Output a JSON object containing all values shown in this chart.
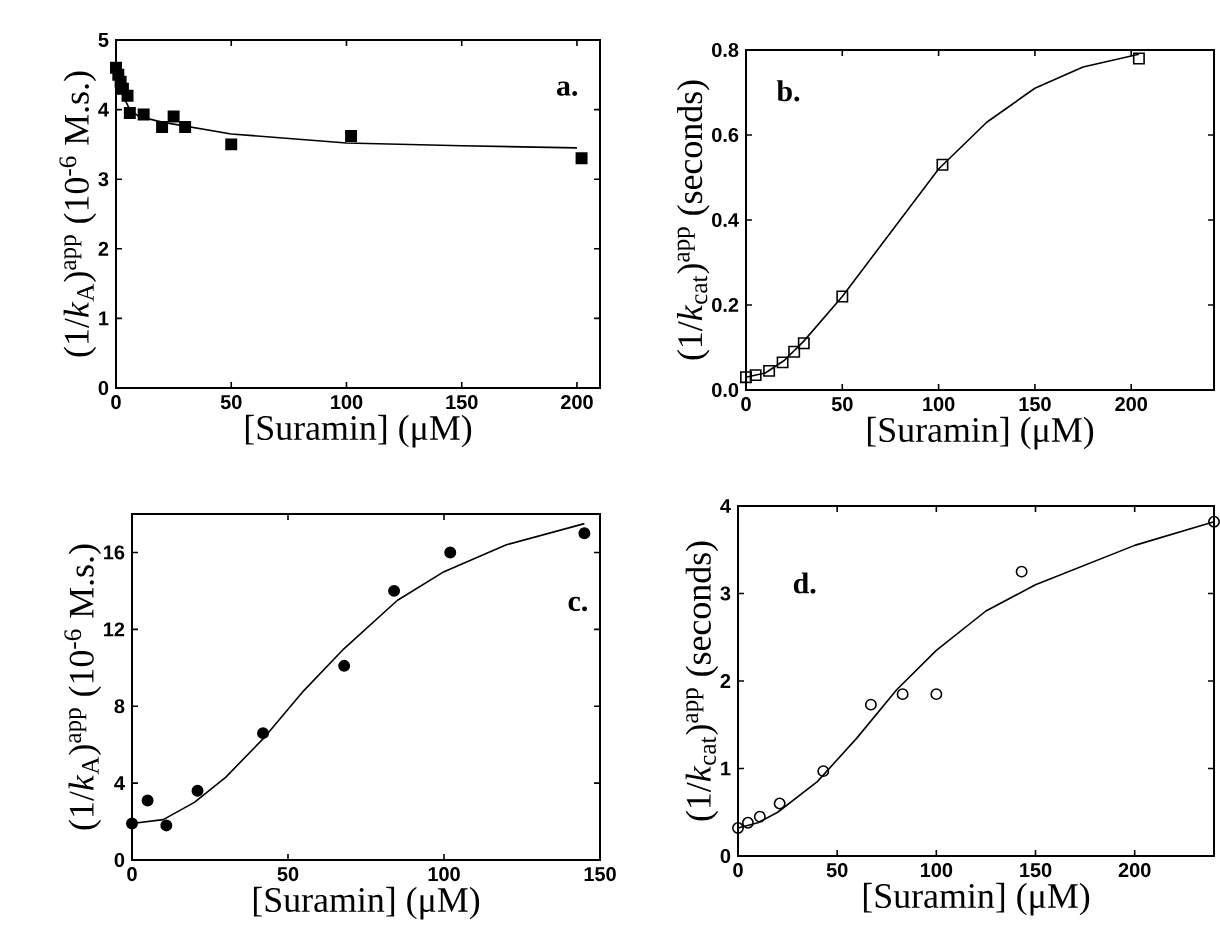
{
  "chart_data": [
    {
      "type": "scatter",
      "xlabel": "[Suramin] (μM)",
      "ylabel": "(1/*k*$_{A}$)$^{app}$ (10$^{-6}$ M.s.)",
      "annotations": [
        "a."
      ],
      "xlim": [
        0,
        210
      ],
      "ylim": [
        0,
        5
      ],
      "xticks": [
        0,
        50,
        100,
        150,
        200
      ],
      "yticks": [
        0,
        1,
        2,
        3,
        4,
        5
      ],
      "series": [
        {
          "marker": "square",
          "color": "#000000",
          "x": [
            0,
            1,
            2,
            3,
            5,
            6,
            12,
            20,
            25,
            30,
            50,
            102,
            202
          ],
          "values": [
            4.6,
            4.5,
            4.4,
            4.3,
            4.2,
            3.95,
            3.93,
            3.75,
            3.9,
            3.75,
            3.5,
            3.62,
            3.3
          ]
        },
        {
          "type": "line",
          "marker": "none",
          "color": "#000000",
          "x": [
            0,
            3,
            6,
            10,
            20,
            50,
            100,
            150,
            200
          ],
          "values": [
            4.6,
            4.2,
            4.0,
            3.9,
            3.82,
            3.65,
            3.52,
            3.48,
            3.45
          ]
        }
      ]
    },
    {
      "type": "scatter",
      "xlabel": "[Suramin] (μM)",
      "ylabel": "(1/*k*$_{cat}$)$^{app}$ (seconds)",
      "annotations": [
        "b."
      ],
      "xlim": [
        0,
        243
      ],
      "ylim": [
        0,
        0.8
      ],
      "xticks": [
        0,
        50,
        100,
        150,
        200
      ],
      "yticks": [
        {
          "value": 0,
          "label": "0.0"
        },
        0.2,
        0.4,
        0.6,
        0.8
      ],
      "series": [
        {
          "marker": "square",
          "color": "#000000",
          "x": [
            0,
            5,
            12,
            19,
            25,
            30,
            50,
            102,
            204
          ],
          "values": [
            0.03,
            0.035,
            0.045,
            0.065,
            0.09,
            0.11,
            0.22,
            0.53,
            0.78
          ]
        },
        {
          "type": "line",
          "marker": "none",
          "color": "#000000",
          "x": [
            0,
            10,
            20,
            30,
            50,
            75,
            100,
            125,
            150,
            175,
            204
          ],
          "values": [
            0.03,
            0.04,
            0.07,
            0.115,
            0.22,
            0.37,
            0.52,
            0.63,
            0.71,
            0.76,
            0.79
          ]
        }
      ]
    },
    {
      "type": "scatter",
      "xlabel": "[Suramin] (μM)",
      "ylabel": "(1/*k*$_{A}$)$^{app}$ (10$^{-6}$ M.s.)",
      "annotations": [
        "c."
      ],
      "xlim": [
        0,
        150
      ],
      "ylim": [
        0,
        18
      ],
      "xticks": [
        0,
        50,
        100,
        150
      ],
      "yticks": [
        0,
        4,
        8,
        12,
        16
      ],
      "series": [
        {
          "marker": "circle",
          "color": "#000000",
          "x": [
            0,
            5,
            11,
            21,
            42,
            68,
            84,
            102,
            145
          ],
          "values": [
            1.9,
            3.1,
            1.8,
            3.6,
            6.6,
            10.1,
            14.0,
            16.0,
            17.0
          ]
        },
        {
          "type": "line",
          "marker": "none",
          "color": "#000000",
          "x": [
            0,
            10,
            20,
            30,
            42,
            55,
            68,
            85,
            100,
            120,
            145
          ],
          "values": [
            1.9,
            2.1,
            3.0,
            4.3,
            6.3,
            8.8,
            11.0,
            13.5,
            15.0,
            16.4,
            17.5
          ]
        }
      ]
    },
    {
      "type": "scatter",
      "xlabel": "[Suramin] (μM)",
      "ylabel": "(1/*k*$_{cat}$)$^{app}$ (seconds)",
      "annotations": [
        "d."
      ],
      "xlim": [
        0,
        240
      ],
      "ylim": [
        0,
        4
      ],
      "xticks": [
        0,
        50,
        100,
        150,
        200
      ],
      "yticks": [
        0,
        1,
        2,
        3,
        4
      ],
      "series": [
        {
          "marker": "circle",
          "color": "#000000",
          "x": [
            0,
            5,
            11,
            21,
            43,
            67,
            83,
            100,
            143,
            240
          ],
          "values": [
            0.32,
            0.38,
            0.45,
            0.6,
            0.97,
            1.73,
            1.85,
            1.85,
            3.25,
            3.82
          ]
        },
        {
          "type": "line",
          "marker": "none",
          "color": "#000000",
          "x": [
            0,
            10,
            20,
            40,
            60,
            80,
            100,
            125,
            150,
            200,
            240
          ],
          "values": [
            0.32,
            0.38,
            0.5,
            0.85,
            1.35,
            1.9,
            2.35,
            2.8,
            3.1,
            3.55,
            3.82
          ]
        }
      ]
    }
  ]
}
